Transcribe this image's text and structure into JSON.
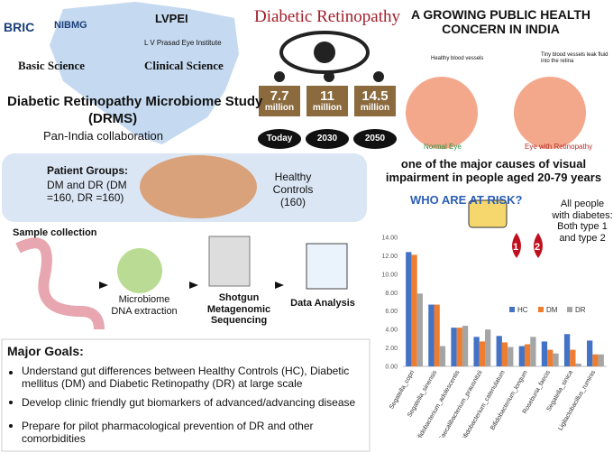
{
  "logos": {
    "bric": "BRIC",
    "nibmg": "NIBMG",
    "lvpei": "LVPEI",
    "lvpei_name": "L V Prasad Eye Institute"
  },
  "study": {
    "basic": "Basic Science",
    "clinical": "Clinical Science",
    "title": "Diabetic Retinopathy Microbiome Study",
    "acronym": "(DRMS)",
    "scope": "Pan-India collaboration"
  },
  "prevalence": {
    "title": "Diabetic Retinopathy",
    "items": [
      {
        "value": "7.7",
        "unit": "million",
        "label": "Today"
      },
      {
        "value": "11",
        "unit": "million",
        "label": "2030"
      },
      {
        "value": "14.5",
        "unit": "million",
        "label": "2050"
      }
    ]
  },
  "concern": {
    "title": "A GROWING PUBLIC HEALTH CONCERN IN INDIA",
    "healthy_vessels": "Healthy blood vessels",
    "leak": "Tiny blood vessels leak fluid into the retina",
    "normal_eye": "Normal Eye",
    "retinopathy_eye": "Eye with Retinopathy",
    "impact": "one of the major causes of visual impairment in people aged 20-79 years"
  },
  "risk": {
    "title": "WHO ARE AT RISK?",
    "text": "All people with diabetes: Both type 1 and type 2",
    "type1": "1",
    "type2": "2"
  },
  "groups": {
    "patients": "Patient Groups:",
    "patients_detail": "DM and DR (DM =160, DR =160)",
    "controls": "Healthy Controls (160)"
  },
  "workflow": {
    "steps": [
      "Sample collection",
      "Microbiome DNA extraction",
      "Shotgun Metagenomic Sequencing",
      "Data Analysis"
    ]
  },
  "goals": {
    "title": "Major Goals:",
    "items": [
      "Understand gut differences between Healthy Controls (HC), Diabetic mellitus (DM) and Diabetic Retinopathy (DR) at large scale",
      "Develop clinic friendly gut biomarkers of advanced/advancing disease",
      "Prepare for pilot pharmacological prevention of DR and other comorbidities"
    ]
  },
  "chart_data": {
    "type": "bar",
    "categories": [
      "Segatella_copri",
      "Segatella_sinensis",
      "Bifidobacterium_adolescentis",
      "Faecalibacterium_prausnitzii",
      "Bifidobacterium_catenulatum",
      "Bifidobacterium_longum",
      "Roseburia_faecis",
      "Segatella_sinica",
      "Ligilactobacillus_ruminis"
    ],
    "series": [
      {
        "name": "HC",
        "color": "#4472c4",
        "values": [
          12.4,
          6.7,
          4.2,
          3.2,
          3.3,
          2.2,
          2.7,
          3.5,
          2.8
        ]
      },
      {
        "name": "DM",
        "color": "#ed7d31",
        "values": [
          12.1,
          6.7,
          4.2,
          2.7,
          2.6,
          2.4,
          1.8,
          1.8,
          1.3
        ]
      },
      {
        "name": "DR",
        "color": "#a5a5a5",
        "values": [
          7.9,
          2.2,
          4.4,
          4.0,
          2.1,
          3.2,
          1.4,
          0.3,
          1.3
        ]
      }
    ],
    "ylim": [
      0,
      14
    ],
    "yticks": [
      {
        "value": 0,
        "label": "0.00"
      },
      {
        "value": 2,
        "label": "2.00"
      },
      {
        "value": 4,
        "label": "4.00"
      },
      {
        "value": 6,
        "label": "6.00"
      },
      {
        "value": 8,
        "label": "8.00"
      },
      {
        "value": 10,
        "label": "10.00"
      },
      {
        "value": 12,
        "label": "12.00"
      },
      {
        "value": 14,
        "label": "14.00"
      }
    ],
    "grid": false,
    "legend": "right"
  }
}
